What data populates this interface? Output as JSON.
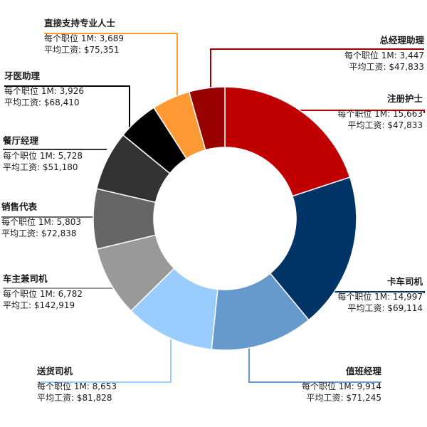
{
  "chart_data": {
    "type": "pie",
    "donut": true,
    "title": "",
    "slices": [
      {
        "name": "注册护士",
        "jobs": "每个职位 1M: 15,663",
        "salary": "平均工资: $47,833",
        "value": 15663,
        "color": "#c00000"
      },
      {
        "name": "卡车司机",
        "jobs": "每个职位 1M: 14,997",
        "salary": "平均工资: $69,114",
        "value": 14997,
        "color": "#003366"
      },
      {
        "name": "值班经理",
        "jobs": "每个职位 1M: 9,914",
        "salary": "平均工资: $71,245",
        "value": 9914,
        "color": "#6699cc"
      },
      {
        "name": "送货司机",
        "jobs": "每个职位 1M: 8,653",
        "salary": "平均工资: $81,828",
        "value": 8653,
        "color": "#99ccff"
      },
      {
        "name": "车主兼司机",
        "jobs": "每个职位 1M: 6,782",
        "salary": "平均工: $142,919",
        "value": 6782,
        "color": "#999999"
      },
      {
        "name": "销售代表",
        "jobs": "每个职位 1M: 5,803",
        "salary": "平均工资: $72,838",
        "value": 5803,
        "color": "#666666"
      },
      {
        "name": "餐厅经理",
        "jobs": "每个职位 1M: 5,728",
        "salary": "平均工资: $51,180",
        "value": 5728,
        "color": "#333333"
      },
      {
        "name": "牙医助理",
        "jobs": "每个职位 1M: 3,926",
        "salary": "平均工资: $68,410",
        "value": 3926,
        "color": "#000000"
      },
      {
        "name": "直接支持专业人士",
        "jobs": "每个职位 1M: 3,689",
        "salary": "平均工资: $75,351",
        "value": 3689,
        "color": "#ff9933"
      },
      {
        "name": "总经理助理",
        "jobs": "每个职位 1M: 3,447",
        "salary": "平均工资: $47,833",
        "value": 3447,
        "color": "#990000"
      }
    ]
  }
}
